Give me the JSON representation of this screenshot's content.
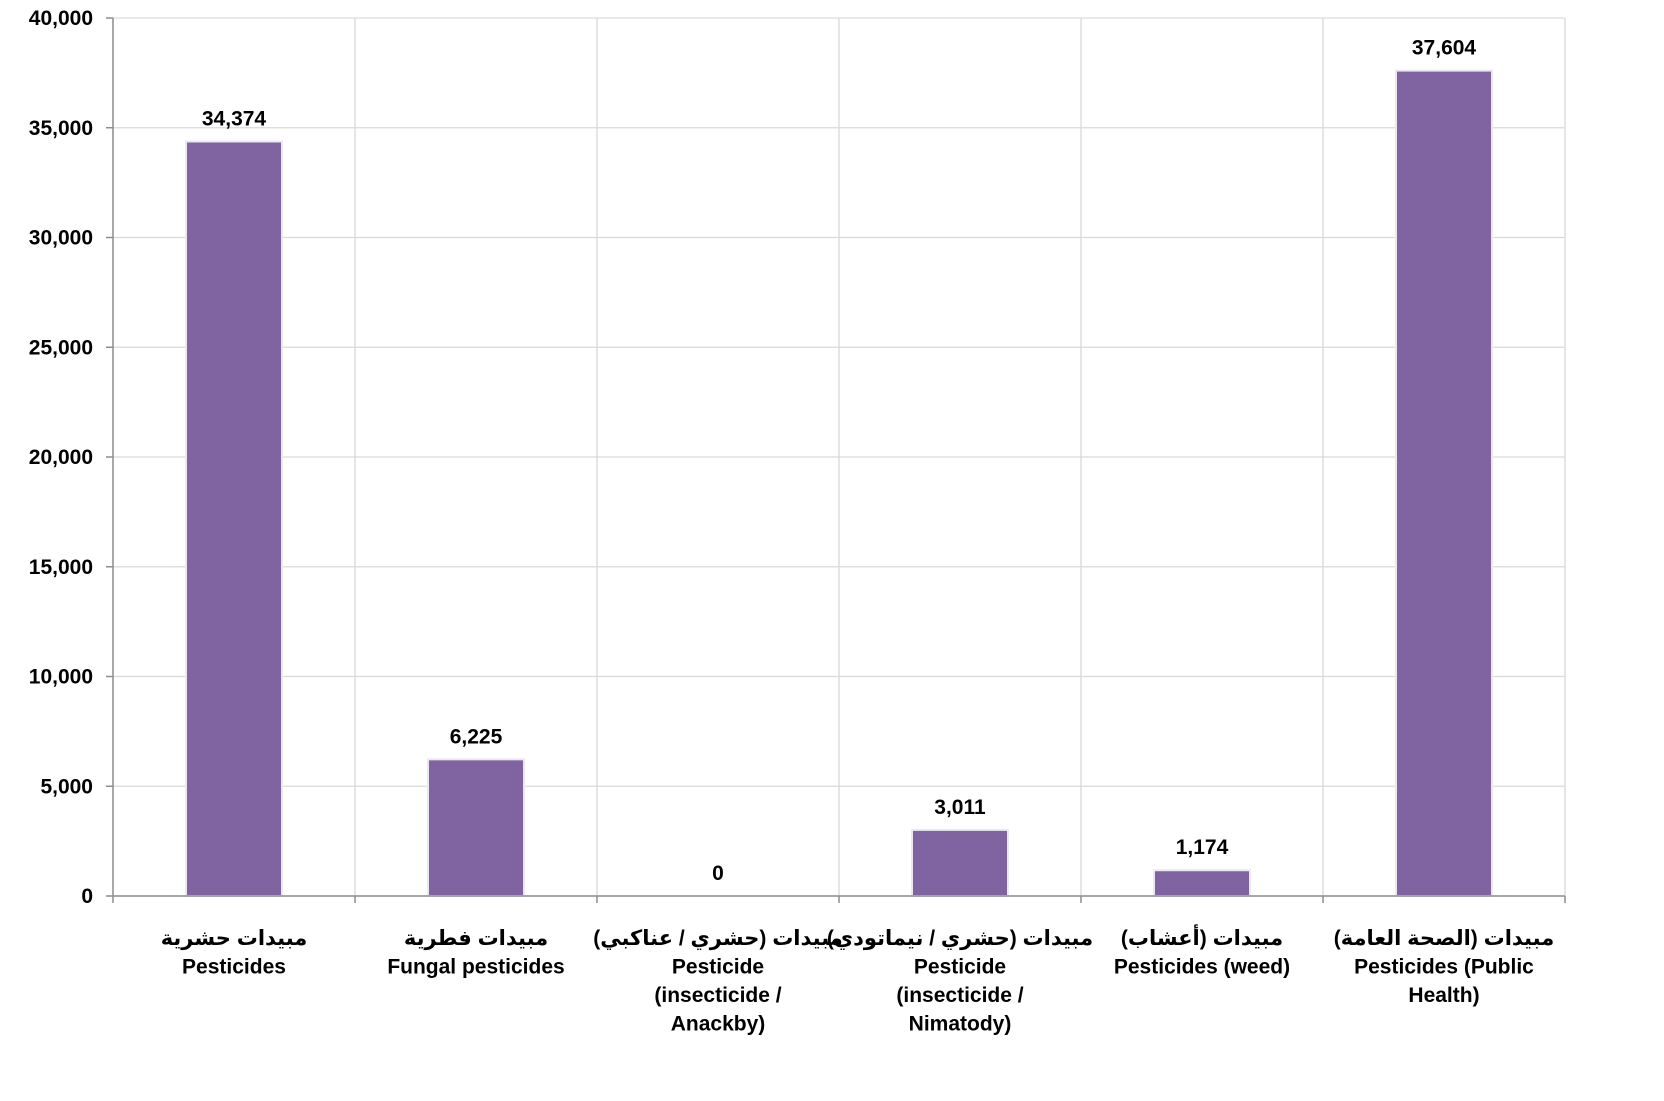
{
  "chart_data": {
    "type": "bar",
    "title": "",
    "xlabel": "",
    "ylabel": "",
    "ylim": [
      0,
      40000
    ],
    "yticks": [
      0,
      5000,
      10000,
      15000,
      20000,
      25000,
      30000,
      35000,
      40000
    ],
    "ytick_labels": [
      "0",
      "5,000",
      "10,000",
      "15,000",
      "20,000",
      "25,000",
      "30,000",
      "35,000",
      "40,000"
    ],
    "grid": true,
    "legend": "none",
    "bar_color": "#8064A2",
    "categories": [
      [
        "مبيدات حشرية",
        "Pesticides"
      ],
      [
        "مبيدات فطرية",
        "Fungal pesticides"
      ],
      [
        "مبيدات (حشري / عناكبي)",
        "Pesticide",
        "(insecticide /",
        "Anackby)"
      ],
      [
        "مبيدات (حشري / نيماتودي)",
        "Pesticide",
        "(insecticide /",
        "Nimatody)"
      ],
      [
        "مبيدات (أعشاب)",
        "Pesticides (weed)"
      ],
      [
        "مبيدات (الصحة العامة)",
        "Pesticides (Public",
        "Health)"
      ]
    ],
    "values": [
      34374,
      6225,
      0,
      3011,
      1174,
      37604
    ],
    "data_labels": [
      "34,374",
      "6,225",
      "0",
      "3,011",
      "1,174",
      "37,604"
    ]
  }
}
